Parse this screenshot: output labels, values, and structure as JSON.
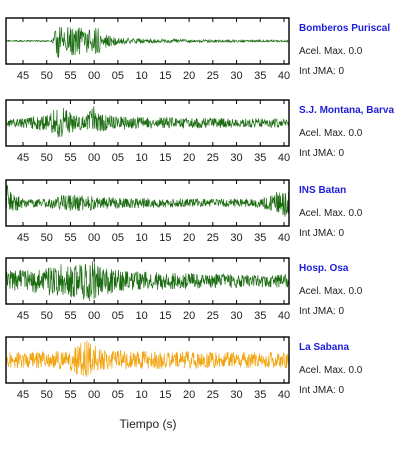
{
  "chart_data": [
    {
      "type": "line",
      "panel": "Bomberos Puriscal",
      "title": "Bomberos Puriscal",
      "acel_label": "Acel. Max. 0.0",
      "int_label": "Int JMA: 0",
      "color": "#1a6b10",
      "x_ticks": [
        "45",
        "50",
        "55",
        "00",
        "05",
        "10",
        "15",
        "20",
        "25",
        "30",
        "35",
        "40"
      ],
      "envelope": [
        {
          "t": 0.0,
          "a": 0.03
        },
        {
          "t": 0.16,
          "a": 0.03
        },
        {
          "t": 0.17,
          "a": 0.3
        },
        {
          "t": 0.185,
          "a": 0.95
        },
        {
          "t": 0.21,
          "a": 0.8
        },
        {
          "t": 0.24,
          "a": 0.65
        },
        {
          "t": 0.27,
          "a": 0.6
        },
        {
          "t": 0.3,
          "a": 0.5
        },
        {
          "t": 0.32,
          "a": 0.7
        },
        {
          "t": 0.34,
          "a": 0.35
        },
        {
          "t": 0.4,
          "a": 0.15
        },
        {
          "t": 0.5,
          "a": 0.1
        },
        {
          "t": 0.6,
          "a": 0.08
        },
        {
          "t": 0.7,
          "a": 0.06
        },
        {
          "t": 1.0,
          "a": 0.04
        }
      ],
      "seed": 11
    },
    {
      "type": "line",
      "panel": "S.J. Montana, Barva",
      "title": "S.J. Montana, Barva",
      "acel_label": "Acel. Max. 0.0",
      "int_label": "Int JMA: 0",
      "color": "#1a6b10",
      "x_ticks": [
        "45",
        "50",
        "55",
        "00",
        "05",
        "10",
        "15",
        "20",
        "25",
        "30",
        "35",
        "40"
      ],
      "envelope": [
        {
          "t": 0.0,
          "a": 0.18
        },
        {
          "t": 0.1,
          "a": 0.28
        },
        {
          "t": 0.15,
          "a": 0.4
        },
        {
          "t": 0.18,
          "a": 0.7
        },
        {
          "t": 0.2,
          "a": 0.8
        },
        {
          "t": 0.23,
          "a": 0.45
        },
        {
          "t": 0.26,
          "a": 0.3
        },
        {
          "t": 0.29,
          "a": 0.45
        },
        {
          "t": 0.31,
          "a": 0.85
        },
        {
          "t": 0.33,
          "a": 0.4
        },
        {
          "t": 0.4,
          "a": 0.3
        },
        {
          "t": 0.6,
          "a": 0.25
        },
        {
          "t": 0.8,
          "a": 0.22
        },
        {
          "t": 1.0,
          "a": 0.2
        }
      ],
      "seed": 23
    },
    {
      "type": "line",
      "panel": "INS Batan",
      "title": "INS Batan",
      "acel_label": "Acel. Max. 0.0",
      "int_label": "Int JMA: 0",
      "color": "#1a6b10",
      "x_ticks": [
        "45",
        "50",
        "55",
        "00",
        "05",
        "10",
        "15",
        "20",
        "25",
        "30",
        "35",
        "40"
      ],
      "envelope": [
        {
          "t": 0.0,
          "a": 0.95
        },
        {
          "t": 0.02,
          "a": 0.5
        },
        {
          "t": 0.06,
          "a": 0.2
        },
        {
          "t": 0.15,
          "a": 0.2
        },
        {
          "t": 0.2,
          "a": 0.35
        },
        {
          "t": 0.26,
          "a": 0.4
        },
        {
          "t": 0.32,
          "a": 0.3
        },
        {
          "t": 0.4,
          "a": 0.25
        },
        {
          "t": 0.6,
          "a": 0.2
        },
        {
          "t": 0.8,
          "a": 0.18
        },
        {
          "t": 0.9,
          "a": 0.2
        },
        {
          "t": 0.96,
          "a": 0.55
        },
        {
          "t": 1.0,
          "a": 0.7
        }
      ],
      "seed": 37
    },
    {
      "type": "line",
      "panel": "Hosp. Osa",
      "title": "Hosp. Osa",
      "acel_label": "Acel. Max. 0.0",
      "int_label": "Int JMA: 0",
      "color": "#1a6b10",
      "x_ticks": [
        "45",
        "50",
        "55",
        "00",
        "05",
        "10",
        "15",
        "20",
        "25",
        "30",
        "35",
        "40"
      ],
      "envelope": [
        {
          "t": 0.0,
          "a": 0.5
        },
        {
          "t": 0.1,
          "a": 0.55
        },
        {
          "t": 0.15,
          "a": 0.7
        },
        {
          "t": 0.2,
          "a": 0.8
        },
        {
          "t": 0.25,
          "a": 0.75
        },
        {
          "t": 0.3,
          "a": 0.95
        },
        {
          "t": 0.35,
          "a": 0.6
        },
        {
          "t": 0.45,
          "a": 0.45
        },
        {
          "t": 0.55,
          "a": 0.4
        },
        {
          "t": 0.7,
          "a": 0.35
        },
        {
          "t": 0.85,
          "a": 0.3
        },
        {
          "t": 1.0,
          "a": 0.3
        }
      ],
      "seed": 53
    },
    {
      "type": "line",
      "panel": "La Sabana",
      "title": "La Sabana",
      "acel_label": "Acel. Max. 0.0",
      "int_label": "Int JMA: 0",
      "color": "#f2a20a",
      "x_ticks": [
        "45",
        "50",
        "55",
        "00",
        "05",
        "10",
        "15",
        "20",
        "25",
        "30",
        "35",
        "40"
      ],
      "xlabel": "Tiempo (s)",
      "envelope": [
        {
          "t": 0.0,
          "a": 0.35
        },
        {
          "t": 0.15,
          "a": 0.4
        },
        {
          "t": 0.22,
          "a": 0.45
        },
        {
          "t": 0.28,
          "a": 0.95
        },
        {
          "t": 0.3,
          "a": 0.8
        },
        {
          "t": 0.33,
          "a": 0.5
        },
        {
          "t": 0.4,
          "a": 0.45
        },
        {
          "t": 0.6,
          "a": 0.4
        },
        {
          "t": 0.8,
          "a": 0.38
        },
        {
          "t": 1.0,
          "a": 0.35
        }
      ],
      "seed": 71
    }
  ]
}
